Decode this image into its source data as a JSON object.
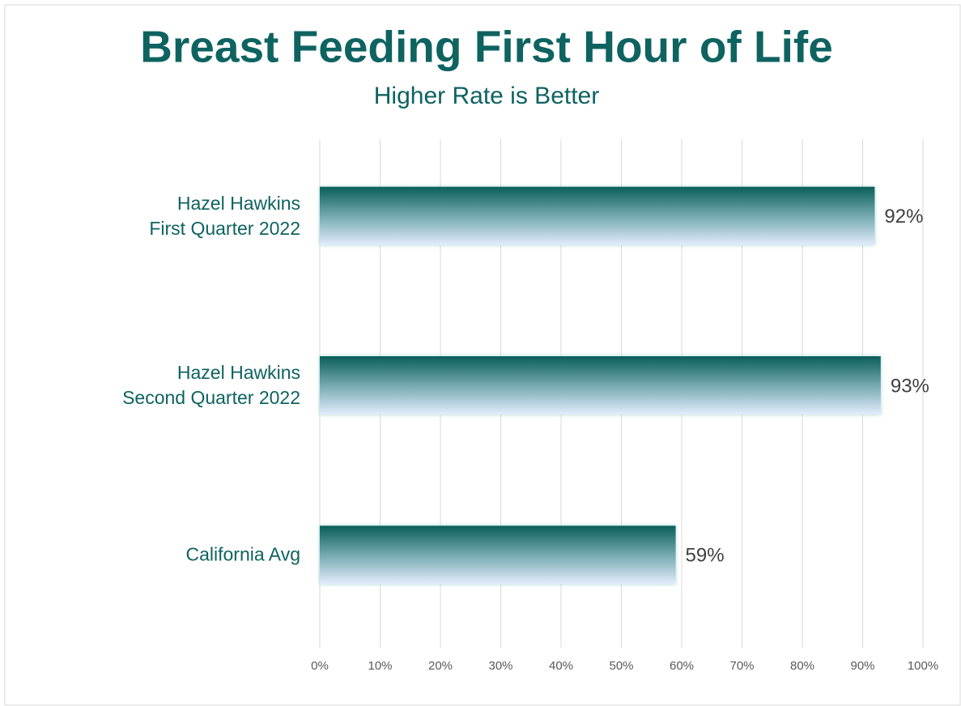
{
  "chart_data": {
    "type": "bar",
    "orientation": "horizontal",
    "title": "Breast Feeding First Hour of Life",
    "subtitle": "Higher Rate is Better",
    "categories": [
      "Hazel Hawkins\nFirst Quarter 2022",
      "Hazel Hawkins\nSecond Quarter 2022",
      "California Avg"
    ],
    "values": [
      92,
      93,
      59
    ],
    "value_labels": [
      "92%",
      "93%",
      "59%"
    ],
    "color": "#0a5e5a",
    "xlim": [
      0,
      100
    ],
    "xticks": [
      {
        "value": 0,
        "label": "0%"
      },
      {
        "value": 10,
        "label": "10%"
      },
      {
        "value": 20,
        "label": "20%"
      },
      {
        "value": 30,
        "label": "30%"
      },
      {
        "value": 40,
        "label": "40%"
      },
      {
        "value": 50,
        "label": "50%"
      },
      {
        "value": 60,
        "label": "60%"
      },
      {
        "value": 70,
        "label": "70%"
      },
      {
        "value": 80,
        "label": "80%"
      },
      {
        "value": 90,
        "label": "90%"
      },
      {
        "value": 100,
        "label": "100%"
      }
    ],
    "grid": true
  }
}
